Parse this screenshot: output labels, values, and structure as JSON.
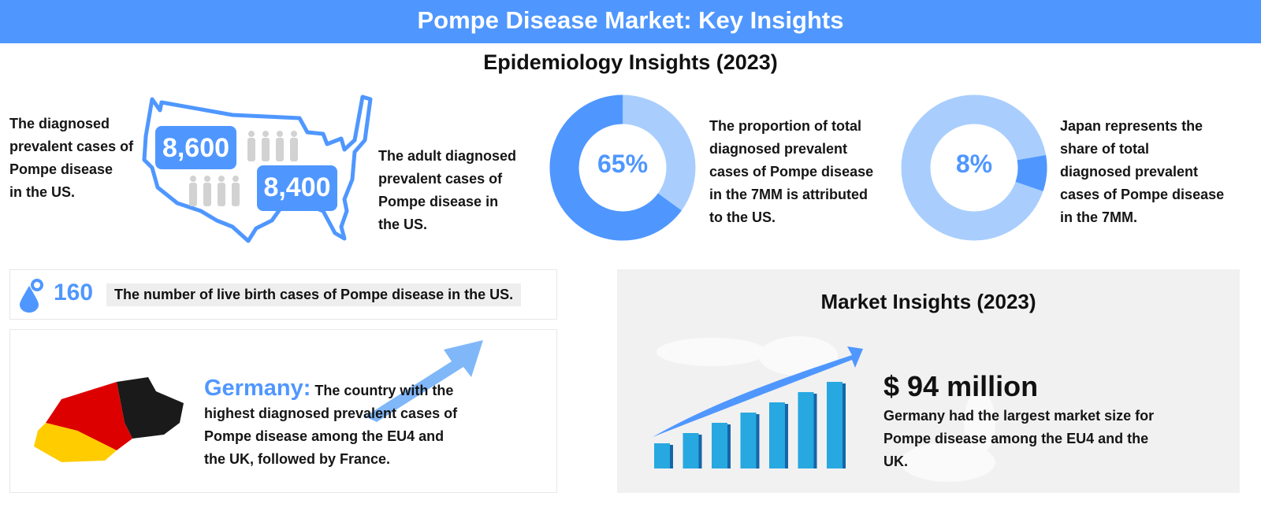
{
  "header": {
    "title": "Pompe Disease Market: Key Insights"
  },
  "epidemiology": {
    "title": "Epidemiology Insights (2023)",
    "us_total": {
      "value": "8,600",
      "text": "The diagnosed prevalent cases of Pompe disease in the US.",
      "lines": [
        "The diagnosed",
        "prevalent cases of",
        "Pompe disease",
        "in the US."
      ]
    },
    "us_adult": {
      "value": "8,400",
      "lines": [
        "The adult diagnosed",
        "prevalent cases of",
        "Pompe disease in",
        "the US."
      ]
    },
    "us_share": {
      "value": "65%",
      "percent": 65,
      "lines": [
        "The proportion of total",
        "diagnosed prevalent",
        "cases of Pompe disease",
        "in the 7MM is attributed",
        "to the US."
      ]
    },
    "japan_share": {
      "value": "8%",
      "percent": 8,
      "lines": [
        "Japan represents the",
        "share of total",
        "diagnosed prevalent",
        "cases of Pompe disease",
        "in the 7MM."
      ]
    },
    "live_birth": {
      "value": "160",
      "text": "The number of live birth cases of Pompe disease in the US."
    },
    "germany": {
      "label": "Germany:",
      "lines": [
        "The country with the",
        "highest diagnosed prevalent cases of",
        "Pompe disease among the EU4 and",
        "the UK, followed by France."
      ]
    }
  },
  "market": {
    "title": "Market Insights (2023)",
    "value": "$ 94 million",
    "lines": [
      "Germany had the largest market size for",
      "Pompe disease among the EU4 and the",
      "UK."
    ]
  },
  "colors": {
    "accent": "#4f97ff",
    "light_accent": "#a9cefd",
    "bar": "#27a8e0",
    "panel": "#f1f1f1"
  }
}
